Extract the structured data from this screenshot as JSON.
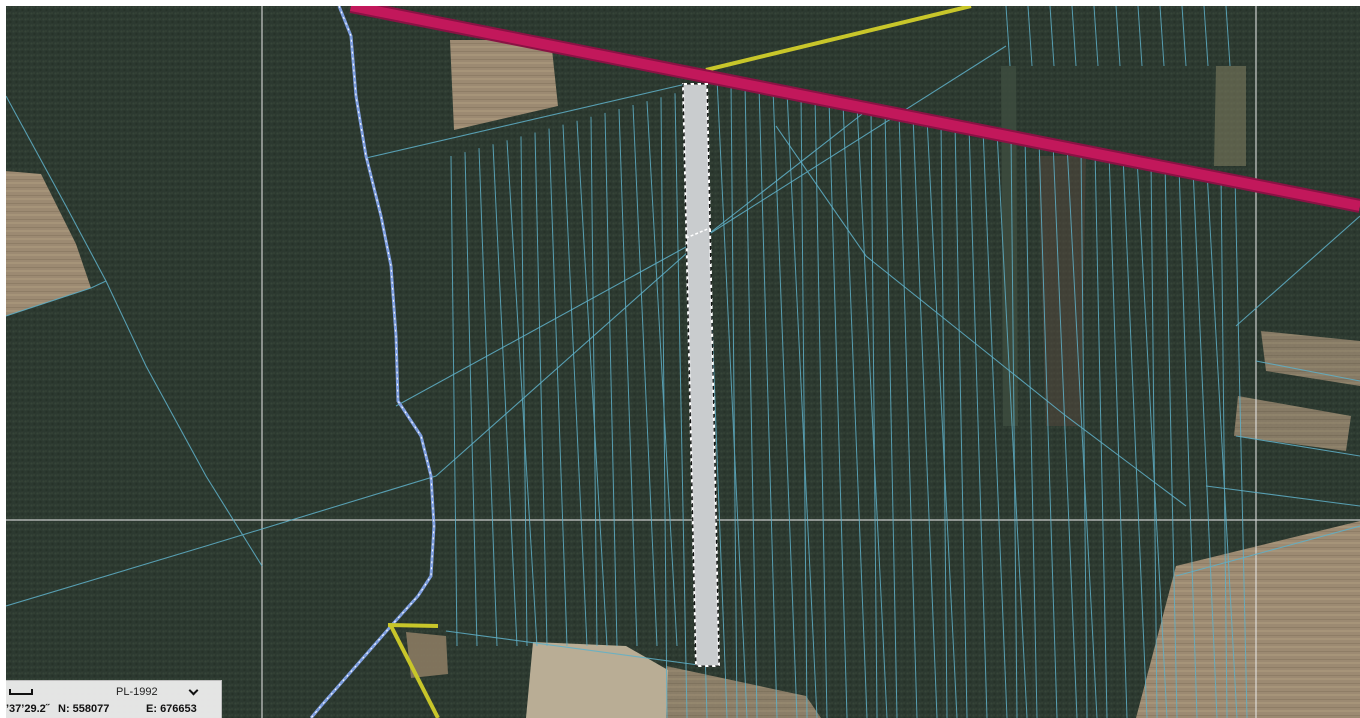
{
  "map": {
    "layers": [
      "aerial-orthophoto",
      "cadastral-parcels",
      "road-magenta",
      "road-yellow",
      "path-blue",
      "selected-parcel"
    ],
    "colors": {
      "forest": "#2e3a30",
      "field": "#a08b70",
      "parcel_line": "#5fb0c8",
      "road_main": "#c2185b",
      "road_secondary": "#c8c62a",
      "path": "#7f9fe0",
      "selection_fill": "#c9ccce",
      "grid": "#e8e8e8"
    },
    "grid": true
  },
  "status": {
    "crs": "PL-1992",
    "coord_dms": "’37’29.2˝",
    "n_label": "N:",
    "n_value": "558077",
    "e_label": "E:",
    "e_value": "676653",
    "icons": {
      "scale": "scale-bar-icon",
      "dropdown": "chevron-down-icon"
    }
  }
}
